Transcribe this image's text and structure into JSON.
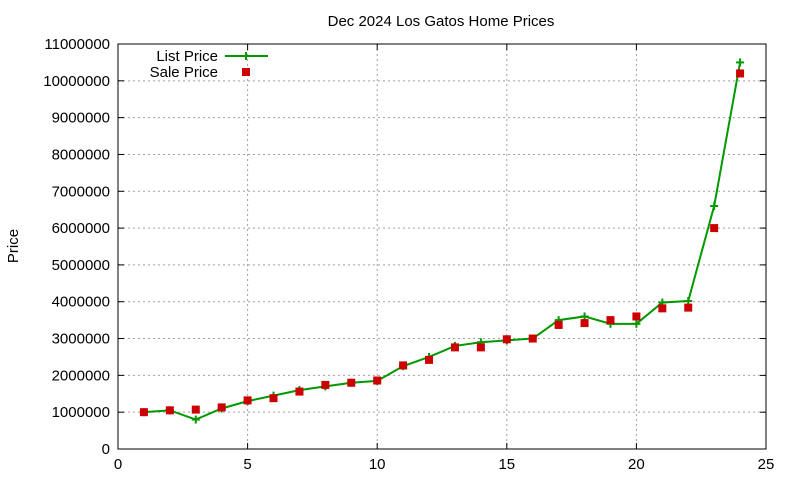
{
  "chart_data": {
    "type": "line",
    "title": "Dec 2024 Los Gatos Home Prices",
    "xlabel": "",
    "ylabel": "Price",
    "xlim": [
      0,
      25
    ],
    "ylim": [
      0,
      11000000
    ],
    "x_ticks": [
      0,
      5,
      10,
      15,
      20,
      25
    ],
    "y_ticks": [
      0,
      1000000,
      2000000,
      3000000,
      4000000,
      5000000,
      6000000,
      7000000,
      8000000,
      9000000,
      10000000,
      11000000
    ],
    "grid": true,
    "legend_position": "top-left",
    "x": [
      1,
      2,
      3,
      4,
      5,
      6,
      7,
      8,
      9,
      10,
      11,
      12,
      13,
      14,
      15,
      16,
      17,
      18,
      19,
      20,
      21,
      22,
      23,
      24
    ],
    "series": [
      {
        "name": "List Price",
        "style": "linespoints",
        "marker": "plus",
        "color": "#009900",
        "values": [
          1000000,
          1050000,
          800000,
          1100000,
          1300000,
          1450000,
          1600000,
          1700000,
          1800000,
          1850000,
          2250000,
          2500000,
          2800000,
          2900000,
          2950000,
          3000000,
          3500000,
          3600000,
          3400000,
          3400000,
          3980000,
          4020000,
          6600000,
          10500000
        ]
      },
      {
        "name": "Sale Price",
        "style": "points",
        "marker": "square",
        "color": "#cc0000",
        "values": [
          1000000,
          1050000,
          1070000,
          1130000,
          1320000,
          1380000,
          1560000,
          1740000,
          1800000,
          1860000,
          2270000,
          2420000,
          2760000,
          2760000,
          2980000,
          3000000,
          3370000,
          3420000,
          3500000,
          3600000,
          3820000,
          3840000,
          6000000,
          10200000
        ]
      }
    ]
  }
}
